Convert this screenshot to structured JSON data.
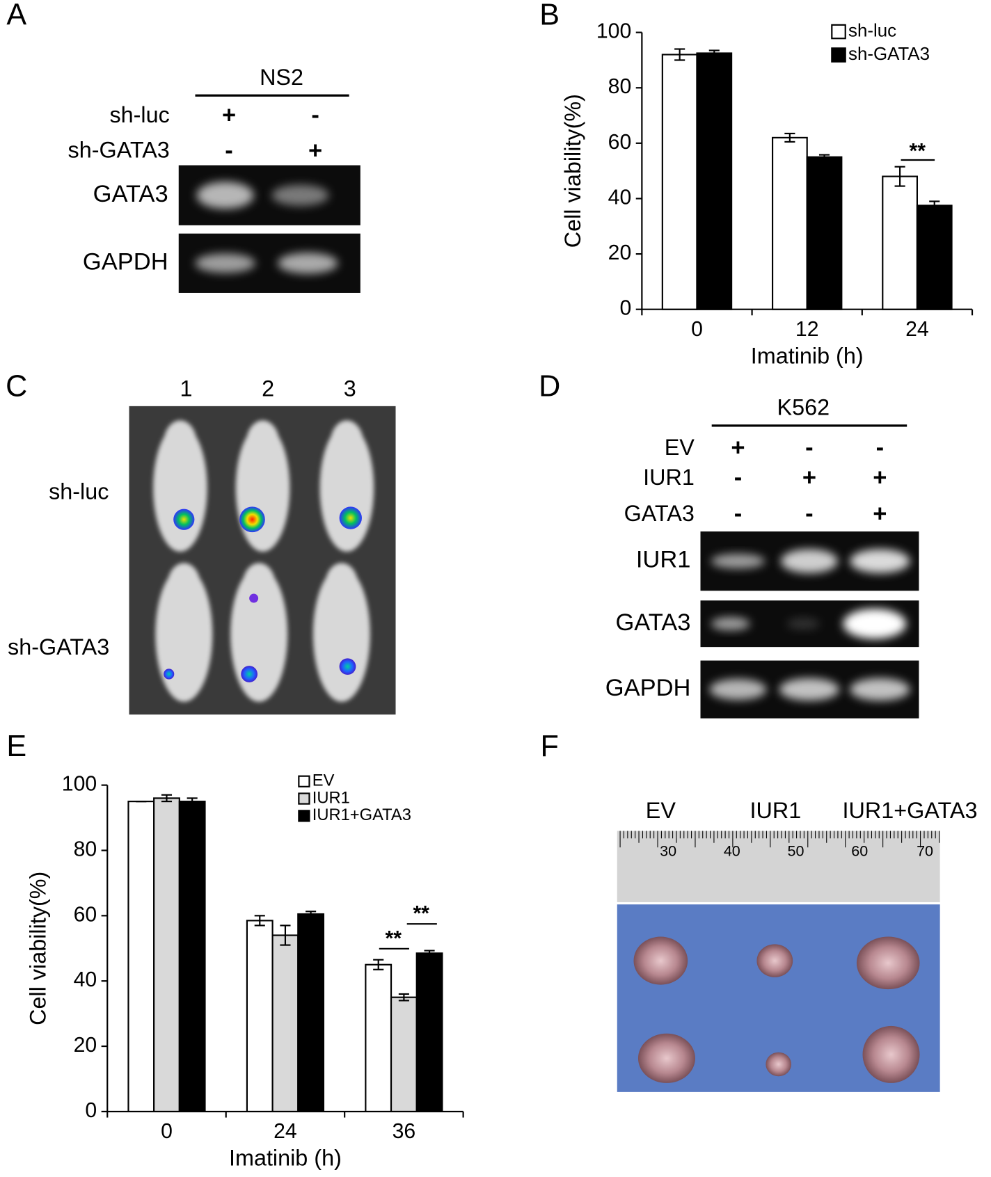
{
  "chart_data": [
    {
      "type": "bar",
      "letter": "B",
      "xlabel": "Imatinib (h)",
      "ylabel": "Cell viability(%)",
      "categories": [
        "0",
        "12",
        "24"
      ],
      "series": [
        {
          "name": "sh-luc",
          "color": "#ffffff",
          "values": [
            92,
            62,
            48
          ],
          "errors": [
            2,
            1.5,
            3.5
          ]
        },
        {
          "name": "sh-GATA3",
          "color": "#000000",
          "values": [
            92.5,
            55,
            37.5
          ],
          "errors": [
            1,
            0.8,
            1.5
          ]
        }
      ],
      "ylim": [
        0,
        100
      ],
      "yticks": [
        0,
        20,
        40,
        60,
        80,
        100
      ],
      "legend": "upper-right",
      "annotations": [
        "**"
      ]
    },
    {
      "type": "bar",
      "letter": "E",
      "xlabel": "Imatinib (h)",
      "ylabel": "Cell viability(%)",
      "categories": [
        "0",
        "24",
        "36"
      ],
      "series": [
        {
          "name": "EV",
          "color": "#ffffff",
          "values": [
            95,
            58.5,
            45
          ],
          "errors": [
            0,
            1.5,
            1.5
          ]
        },
        {
          "name": "IUR1",
          "color": "#d9d9d9",
          "values": [
            96,
            54,
            35
          ],
          "errors": [
            1,
            3,
            1
          ]
        },
        {
          "name": "IUR1+GATA3",
          "color": "#000000",
          "values": [
            95,
            60.5,
            48.5
          ],
          "errors": [
            1,
            0.8,
            0.8
          ]
        }
      ],
      "ylim": [
        0,
        100
      ],
      "yticks": [
        0,
        20,
        40,
        60,
        80,
        100
      ],
      "legend": "upper-right",
      "annotations": [
        "**",
        "**"
      ]
    }
  ],
  "panel_a": {
    "letter": "A",
    "cell_line": "NS2",
    "conditions": [
      {
        "label": "sh-luc",
        "marks": [
          "+",
          "-"
        ]
      },
      {
        "label": "sh-GATA3",
        "marks": [
          "-",
          "+"
        ]
      }
    ],
    "blots": [
      "GATA3",
      "GAPDH"
    ]
  },
  "panel_c": {
    "letter": "C",
    "columns": [
      "1",
      "2",
      "3"
    ],
    "rows": [
      "sh-luc",
      "sh-GATA3"
    ]
  },
  "panel_d": {
    "letter": "D",
    "cell_line": "K562",
    "conditions": [
      {
        "label": "EV",
        "marks": [
          "+",
          "-",
          "-"
        ]
      },
      {
        "label": "IUR1",
        "marks": [
          "-",
          "+",
          "+"
        ]
      },
      {
        "label": "GATA3",
        "marks": [
          "-",
          "-",
          "+"
        ]
      }
    ],
    "blots": [
      "IUR1",
      "GATA3",
      "GAPDH"
    ]
  },
  "panel_f": {
    "letter": "F",
    "groups": [
      "EV",
      "IUR1",
      "IUR1+GATA3"
    ],
    "ruler_labels": [
      "30",
      "40",
      "50",
      "60",
      "70"
    ]
  }
}
